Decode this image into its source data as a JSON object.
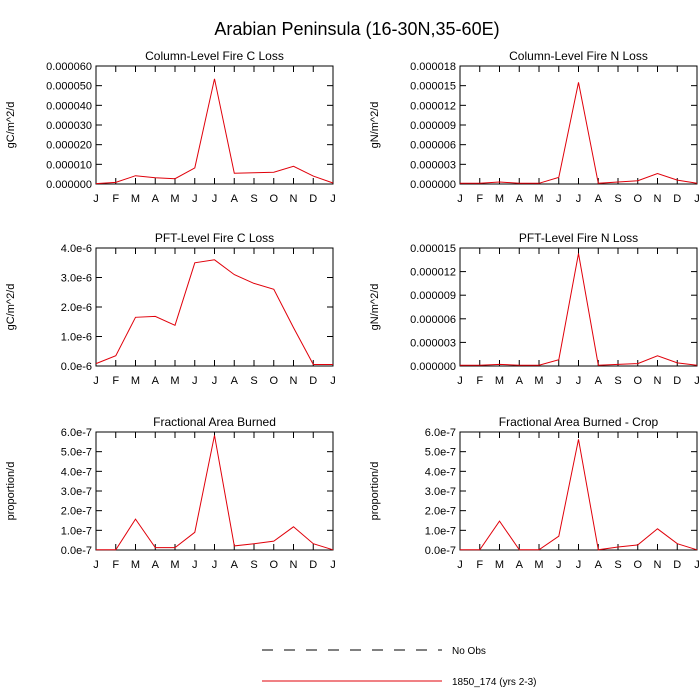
{
  "title": "Arabian Peninsula (16-30N,35-60E)",
  "months": [
    "J",
    "F",
    "M",
    "A",
    "M",
    "J",
    "J",
    "A",
    "S",
    "O",
    "N",
    "D",
    "J"
  ],
  "legend": {
    "obs_label": "No Obs",
    "model_label": "1850_174 (yrs 2-3)",
    "model_color": "#e0000a"
  },
  "chart_data": [
    {
      "type": "line",
      "title": "Column-Level Fire C Loss",
      "ylabel": "gC/m^2/d",
      "xlabel": "",
      "categories": [
        "J",
        "F",
        "M",
        "A",
        "M",
        "J",
        "J",
        "A",
        "S",
        "O",
        "N",
        "D",
        "J"
      ],
      "ylim": [
        0,
        6e-05
      ],
      "yticks": [
        "0.000000",
        "0.000010",
        "0.000020",
        "0.000030",
        "0.000040",
        "0.000050",
        "0.000060"
      ],
      "series": [
        {
          "name": "1850_174 (yrs 2-3)",
          "values": [
            2e-07,
            8e-07,
            4.2e-06,
            3.2e-06,
            2.7e-06,
            8.2e-06,
            5.35e-05,
            5.5e-06,
            5.7e-06,
            6e-06,
            9e-06,
            4e-06,
            5e-07
          ]
        }
      ]
    },
    {
      "type": "line",
      "title": "Column-Level Fire N Loss",
      "ylabel": "gN/m^2/d",
      "xlabel": "",
      "categories": [
        "J",
        "F",
        "M",
        "A",
        "M",
        "J",
        "J",
        "A",
        "S",
        "O",
        "N",
        "D",
        "J"
      ],
      "ylim": [
        0,
        1.8e-05
      ],
      "yticks": [
        "0.000000",
        "0.000003",
        "0.000006",
        "0.000009",
        "0.000012",
        "0.000015",
        "0.000018"
      ],
      "series": [
        {
          "name": "1850_174 (yrs 2-3)",
          "values": [
            1e-07,
            1e-07,
            3e-07,
            1e-07,
            1e-07,
            1e-06,
            1.55e-05,
            1e-07,
            3e-07,
            5e-07,
            1.6e-06,
            6e-07,
            1e-07
          ]
        }
      ]
    },
    {
      "type": "line",
      "title": "PFT-Level Fire C Loss",
      "ylabel": "gC/m^2/d",
      "xlabel": "",
      "categories": [
        "J",
        "F",
        "M",
        "A",
        "M",
        "J",
        "J",
        "A",
        "S",
        "O",
        "N",
        "D",
        "J"
      ],
      "ylim": [
        0,
        4e-06
      ],
      "yticks": [
        "0.0e-6",
        "1.0e-6",
        "2.0e-6",
        "3.0e-6",
        "4.0e-6"
      ],
      "series": [
        {
          "name": "1850_174 (yrs 2-3)",
          "values": [
            8e-08,
            3.5e-07,
            1.65e-06,
            1.68e-06,
            1.38e-06,
            3.5e-06,
            3.6e-06,
            3.1e-06,
            2.8e-06,
            2.6e-06,
            1.3e-06,
            5e-08,
            5e-08
          ]
        }
      ]
    },
    {
      "type": "line",
      "title": "PFT-Level Fire N Loss",
      "ylabel": "gN/m^2/d",
      "xlabel": "",
      "categories": [
        "J",
        "F",
        "M",
        "A",
        "M",
        "J",
        "J",
        "A",
        "S",
        "O",
        "N",
        "D",
        "J"
      ],
      "ylim": [
        0,
        1.5e-05
      ],
      "yticks": [
        "0.000000",
        "0.000003",
        "0.000006",
        "0.000009",
        "0.000012",
        "0.000015"
      ],
      "series": [
        {
          "name": "1850_174 (yrs 2-3)",
          "values": [
            1e-07,
            1e-07,
            2e-07,
            1e-07,
            1e-07,
            8e-07,
            1.43e-05,
            1e-07,
            2e-07,
            3e-07,
            1.3e-06,
            4e-07,
            1e-07
          ]
        }
      ]
    },
    {
      "type": "line",
      "title": "Fractional Area Burned",
      "ylabel": "proportion/d",
      "xlabel": "",
      "categories": [
        "J",
        "F",
        "M",
        "A",
        "M",
        "J",
        "J",
        "A",
        "S",
        "O",
        "N",
        "D",
        "J"
      ],
      "ylim": [
        0,
        6e-07
      ],
      "yticks": [
        "0.0e-7",
        "1.0e-7",
        "2.0e-7",
        "3.0e-7",
        "4.0e-7",
        "5.0e-7",
        "6.0e-7"
      ],
      "series": [
        {
          "name": "1850_174 (yrs 2-3)",
          "values": [
            1e-09,
            1e-09,
            1.57e-07,
            1.2e-08,
            1.2e-08,
            9e-08,
            5.83e-07,
            2.1e-08,
            3.2e-08,
            4.5e-08,
            1.18e-07,
            3.2e-08,
            1e-09
          ]
        }
      ]
    },
    {
      "type": "line",
      "title": "Fractional Area Burned - Crop",
      "ylabel": "proportion/d",
      "xlabel": "",
      "categories": [
        "J",
        "F",
        "M",
        "A",
        "M",
        "J",
        "J",
        "A",
        "S",
        "O",
        "N",
        "D",
        "J"
      ],
      "ylim": [
        0,
        6e-07
      ],
      "yticks": [
        "0.0e-7",
        "1.0e-7",
        "2.0e-7",
        "3.0e-7",
        "4.0e-7",
        "5.0e-7",
        "6.0e-7"
      ],
      "series": [
        {
          "name": "1850_174 (yrs 2-3)",
          "values": [
            1e-09,
            1e-09,
            1.47e-07,
            1e-09,
            1e-09,
            7e-08,
            5.63e-07,
            1e-09,
            1.5e-08,
            2.6e-08,
            1.08e-07,
            3.2e-08,
            1e-09
          ]
        }
      ]
    }
  ]
}
